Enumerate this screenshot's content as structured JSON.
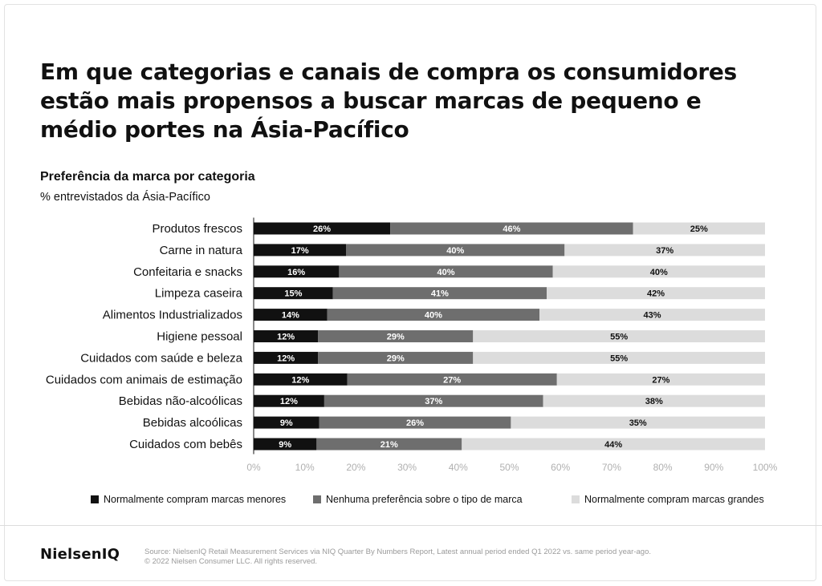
{
  "headline": "Em que categorias e canais de compra os consumidores estão mais propensos a buscar marcas de pequeno e médio portes na Ásia-Pacífico",
  "colors": {
    "small_brands": "#111111",
    "no_preference": "#6e6e6e",
    "large_brands": "#dcdcdc",
    "axis_text": "#b0b0b0"
  },
  "chart_data": {
    "type": "bar",
    "orientation": "horizontal",
    "stacked": true,
    "title": "Preferência da marca por categoria",
    "subtitle": "% entrevistados da Ásia-Pacífico",
    "categories": [
      "Produtos frescos",
      "Carne in natura",
      "Confeitaria e snacks",
      "Limpeza caseira",
      "Alimentos Industrializados",
      "Higiene pessoal",
      "Cuidados com saúde e beleza",
      "Cuidados com animais de estimação",
      "Bebidas não-alcoólicas",
      "Bebidas alcoólicas",
      "Cuidados com bebês"
    ],
    "series": [
      {
        "name": "Normalmente compram marcas menores",
        "values": [
          26,
          17,
          16,
          15,
          14,
          12,
          12,
          12,
          12,
          9,
          9
        ]
      },
      {
        "name": "Nenhuma preferência sobre o tipo de marca",
        "values": [
          46,
          40,
          40,
          41,
          40,
          29,
          29,
          27,
          37,
          26,
          21
        ]
      },
      {
        "name": "Normalmente compram marcas grandes",
        "values": [
          25,
          37,
          40,
          42,
          43,
          55,
          55,
          27,
          38,
          35,
          44
        ]
      }
    ],
    "bar_extents": [
      [
        26.7,
        74.2,
        100
      ],
      [
        18.1,
        60.8,
        100
      ],
      [
        16.7,
        58.5,
        100
      ],
      [
        15.5,
        57.3,
        100
      ],
      [
        14.4,
        55.9,
        100
      ],
      [
        12.6,
        42.9,
        100
      ],
      [
        12.6,
        42.9,
        100
      ],
      [
        18.3,
        59.3,
        100
      ],
      [
        13.8,
        56.6,
        100
      ],
      [
        12.8,
        50.3,
        100
      ],
      [
        12.3,
        40.7,
        100
      ]
    ],
    "xlabel": "",
    "ylabel": "",
    "xlim": [
      0,
      100
    ],
    "xticks": [
      "0%",
      "10%",
      "20%",
      "30%",
      "40%",
      "50%",
      "60%",
      "70%",
      "80%",
      "90%",
      "100%"
    ],
    "grid": false,
    "legend_position": "bottom"
  },
  "footer": {
    "logo": "NielsenIQ",
    "source_line1": "Source: NielsenIQ Retail Measurement Services via NIQ Quarter By Numbers Report, Latest annual period ended Q1 2022 vs. same period year-ago.",
    "source_line2": "© 2022 Nielsen Consumer LLC. All rights reserved."
  }
}
